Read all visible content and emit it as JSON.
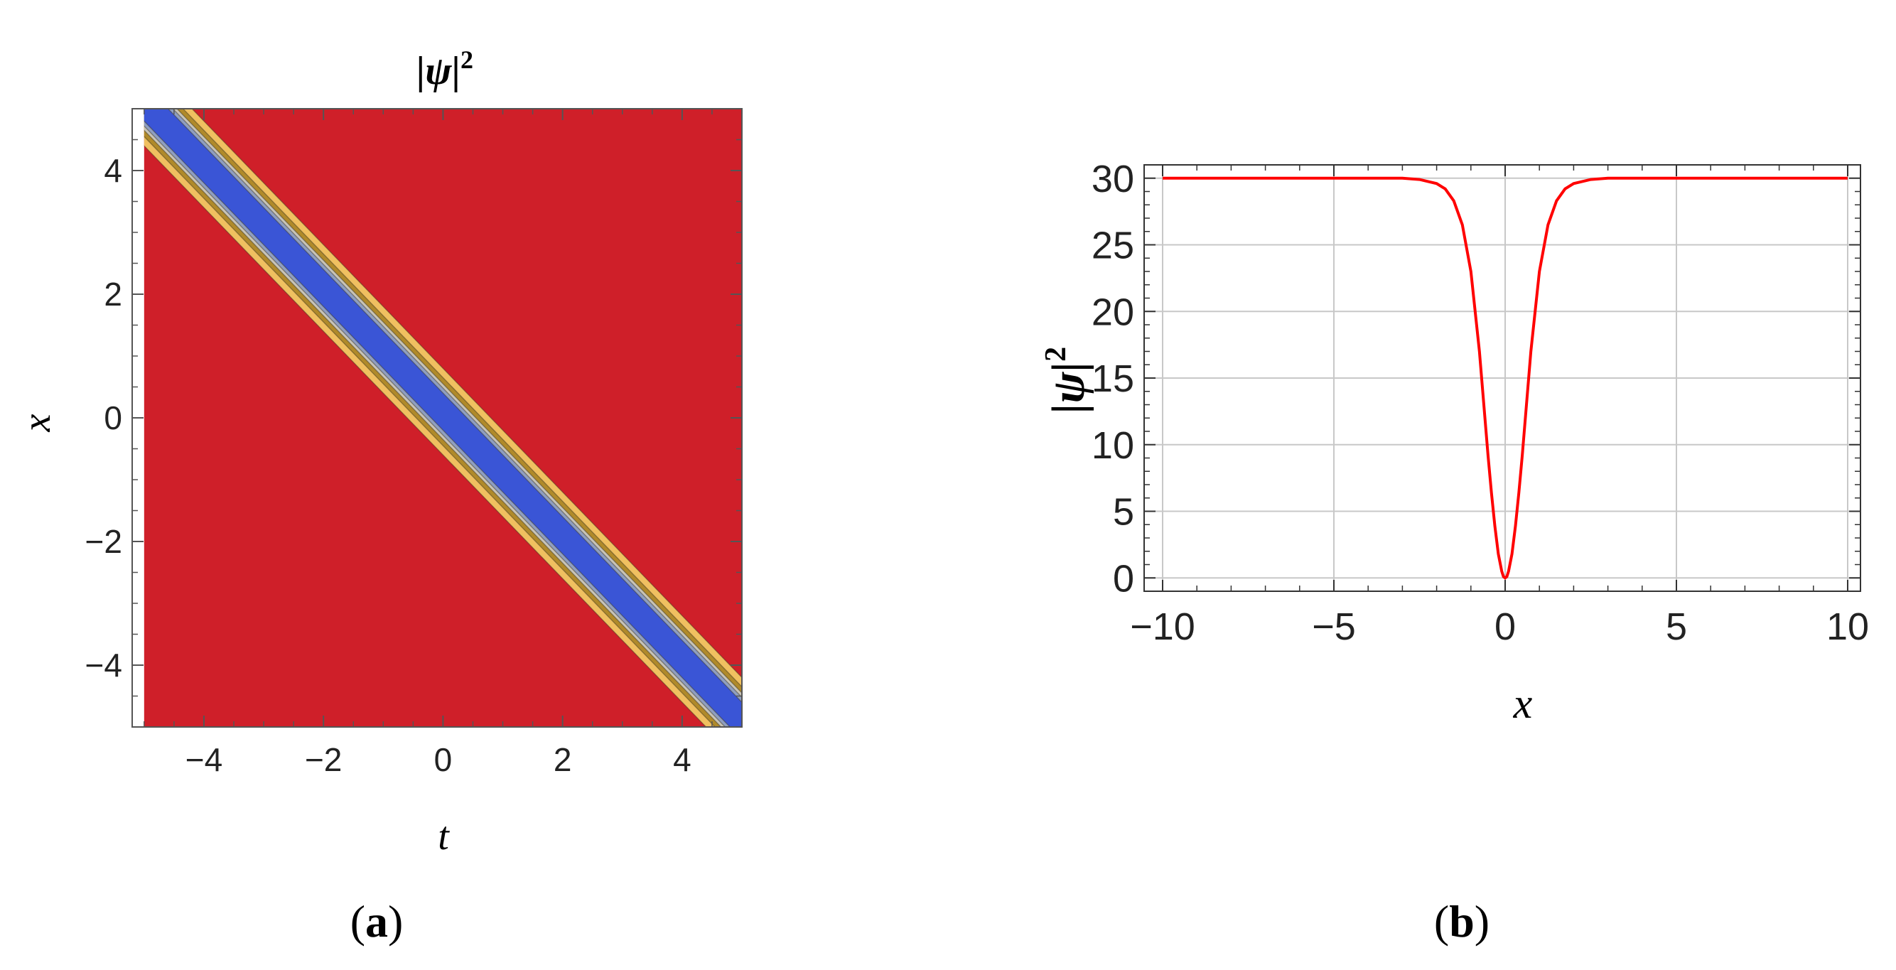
{
  "chart_data": [
    {
      "panel_label": "(a)",
      "panel_label_letter": "a",
      "type": "heatmap",
      "title": "|ψ|²",
      "title_base": "|ψ|",
      "title_sup": "2",
      "xlabel": "t",
      "ylabel": "x",
      "xlim": [
        -5.2,
        5.0
      ],
      "ylim": [
        -5.0,
        5.0
      ],
      "xticks": [
        -4,
        -2,
        0,
        2,
        4
      ],
      "yticks": [
        -4,
        -2,
        0,
        2,
        4
      ],
      "xtick_labels": [
        "−4",
        "−2",
        "0",
        "2",
        "4"
      ],
      "ytick_labels": [
        "−4",
        "−2",
        "0",
        "2",
        "4"
      ],
      "plot_range": [
        -5,
        5
      ],
      "trough_line": {
        "x_intercept": 0.1,
        "slope": -1,
        "description": "|psi|^2 minimum along x = -t + 0.1"
      },
      "contour_bands": [
        {
          "from": -0.7,
          "to": 0.7,
          "color": "#f0c060"
        },
        {
          "from": -0.55,
          "to": 0.55,
          "color": "#b08a2a"
        },
        {
          "from": -0.45,
          "to": 0.45,
          "color": "#c8c4b8"
        },
        {
          "from": -0.38,
          "to": 0.38,
          "color": "#8f9ec0"
        },
        {
          "from": -0.3,
          "to": 0.3,
          "color": "#3a55d6"
        }
      ],
      "colors": {
        "background": "#cf1f29",
        "low": "#3a55d6",
        "mid": "#f0c060"
      }
    },
    {
      "panel_label": "(b)",
      "panel_label_letter": "b",
      "type": "line",
      "xlabel": "x",
      "ylabel": "|ψ|²",
      "ylabel_base": "|ψ|",
      "ylabel_sup": "2",
      "xlim": [
        -10,
        10
      ],
      "ylim": [
        -1,
        31
      ],
      "xticks": [
        -10,
        -5,
        0,
        5,
        10
      ],
      "yticks": [
        0,
        5,
        10,
        15,
        20,
        25,
        30
      ],
      "xtick_labels": [
        "−10",
        "−5",
        "0",
        "5",
        "10"
      ],
      "ytick_labels": [
        "0",
        "5",
        "10",
        "15",
        "20",
        "25",
        "30"
      ],
      "grid": true,
      "series": [
        {
          "color": "#ff0000",
          "x": [
            -10,
            -3,
            -2.5,
            -2,
            -1.75,
            -1.5,
            -1.25,
            -1,
            -0.75,
            -0.5,
            -0.4,
            -0.3,
            -0.2,
            -0.1,
            -0.05,
            0,
            0.05,
            0.1,
            0.2,
            0.3,
            0.4,
            0.5,
            0.75,
            1,
            1.25,
            1.5,
            1.75,
            2,
            2.5,
            3,
            10
          ],
          "y": [
            30,
            30,
            29.9,
            29.6,
            29.2,
            28.3,
            26.5,
            23.0,
            17.0,
            9.2,
            6.4,
            3.9,
            1.8,
            0.5,
            0.1,
            0,
            0.1,
            0.5,
            1.8,
            3.9,
            6.4,
            9.2,
            17.0,
            23.0,
            26.5,
            28.3,
            29.2,
            29.6,
            29.9,
            30,
            30
          ]
        }
      ]
    }
  ]
}
